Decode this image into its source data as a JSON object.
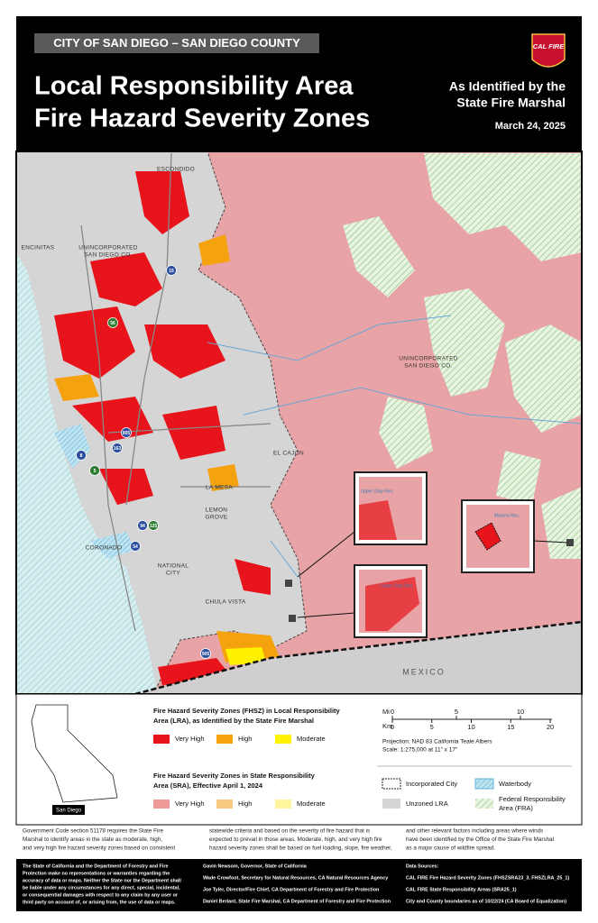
{
  "header": {
    "county": "CITY OF SAN DIEGO – SAN DIEGO COUNTY",
    "title_1": "Local Responsibility Area",
    "title_2": "Fire Hazard Severity Zones",
    "identified_1": "As Identified by the",
    "identified_2": "State Fire Marshal",
    "date": "March 24, 2025",
    "logo": "CAL FIRE"
  },
  "map_labels": {
    "escondido": "ESCONDIDO",
    "encinitas": "ENCINITAS",
    "unincorporated_w_1": "UNINCORPORATED",
    "unincorporated_w_2": "SAN DIEGO CO.",
    "unincorporated_e_1": "UNINCORPORATED",
    "unincorporated_e_2": "SAN DIEGO CO.",
    "el_cajon": "EL CAJON",
    "la_mesa": "LA MESA",
    "lemon_grove_1": "LEMON",
    "lemon_grove_2": "GROVE",
    "coronado": "CORONADO",
    "national_city_1": "NATIONAL",
    "national_city_2": "CITY",
    "chula_vista": "CHULA VISTA",
    "mexico": "MEXICO",
    "upper_otay": "Upper Otay Res.",
    "lower_otay": "Lower Otay Res.",
    "morena": "Morena Res."
  },
  "highways": [
    "15",
    "56",
    "8",
    "163",
    "5",
    "805",
    "94",
    "125",
    "54",
    "905"
  ],
  "legend": {
    "lra_heading_1": "Fire Hazard Severity Zones (FHSZ) in Local Responsibility",
    "lra_heading_2": "Area (LRA), as Identified by the State Fire Marshal",
    "lra_items": [
      {
        "label": "Very High",
        "color": "#e8141b"
      },
      {
        "label": "High",
        "color": "#f5a20f"
      },
      {
        "label": "Moderate",
        "color": "#fff200"
      }
    ],
    "sra_heading_1": "Fire Hazard Severity Zones in State Responsibility",
    "sra_heading_2": "Area (SRA), Effective April 1, 2024",
    "sra_items": [
      {
        "label": "Very High",
        "color": "#f09a9a"
      },
      {
        "label": "High",
        "color": "#f8c880"
      },
      {
        "label": "Moderate",
        "color": "#fff59a"
      }
    ],
    "incorporated_city": "Incorporated City",
    "waterbody": "Waterbody",
    "unzoned_lra": "Unzoned LRA",
    "fra_1": "Federal Responsibility",
    "fra_2": "Area (FRA)",
    "inset_label": "San Diego",
    "mi_unit": "Mi",
    "mi_ticks": [
      0,
      5,
      10
    ],
    "km_unit": "Km",
    "km_ticks": [
      0,
      5,
      10,
      15,
      20
    ],
    "projection": "Projection: NAD 83 California Teale Albers",
    "scale": "Scale: 1:275,000 at 11\" x 17\""
  },
  "body_text": [
    [
      "Government Code section 51178 requires the State Fire",
      "Marshal to identify areas in the state as moderate, high,",
      "and very high fire hazard severity zones based on consistent"
    ],
    [
      "statewide criteria and based on the severity of fire hazard that is",
      "expected to prevail in those areas. Moderate, high, and very high fire",
      "hazard severity zones shall be based on fuel loading, slope, fire weather,"
    ],
    [
      "and other relevant factors including areas where winds",
      "have been identified by the Office of the State Fire Marshal",
      "as a major cause of wildfire spread."
    ]
  ],
  "footer": {
    "disclaimer": [
      "The State of California and the Department of Forestry and Fire",
      "Protection make no representations or warranties regarding the",
      "accuracy of data or maps. Neither the State nor the Department shall",
      "be liable under any circumstances for any direct, special, incidental,",
      "or consequential damages with respect to any claim by any user or",
      "third party on account of, or arising from, the use of data or maps."
    ],
    "officials": [
      "Gavin Newsom, Governor, State of California",
      "Wade Crowfoot, Secretary for Natural Resources, CA Natural Resources Agency",
      "Joe Tyler, Director/Fire Chief, CA Department of Forestry and Fire Protection",
      "Daniel Berlant, State Fire Marshal, CA Department of Forestry and Fire Protection"
    ],
    "sources": [
      "Data Sources:",
      "CAL FIRE Fire Hazard Severity Zones (FHSZSRA23_3, FHSZLRA_25_1)",
      "CAL FIRE State Responsibility Areas (SRA25_1)",
      "City and County boundaries as of 10/22/24 (CA Board of Equalization)"
    ]
  }
}
